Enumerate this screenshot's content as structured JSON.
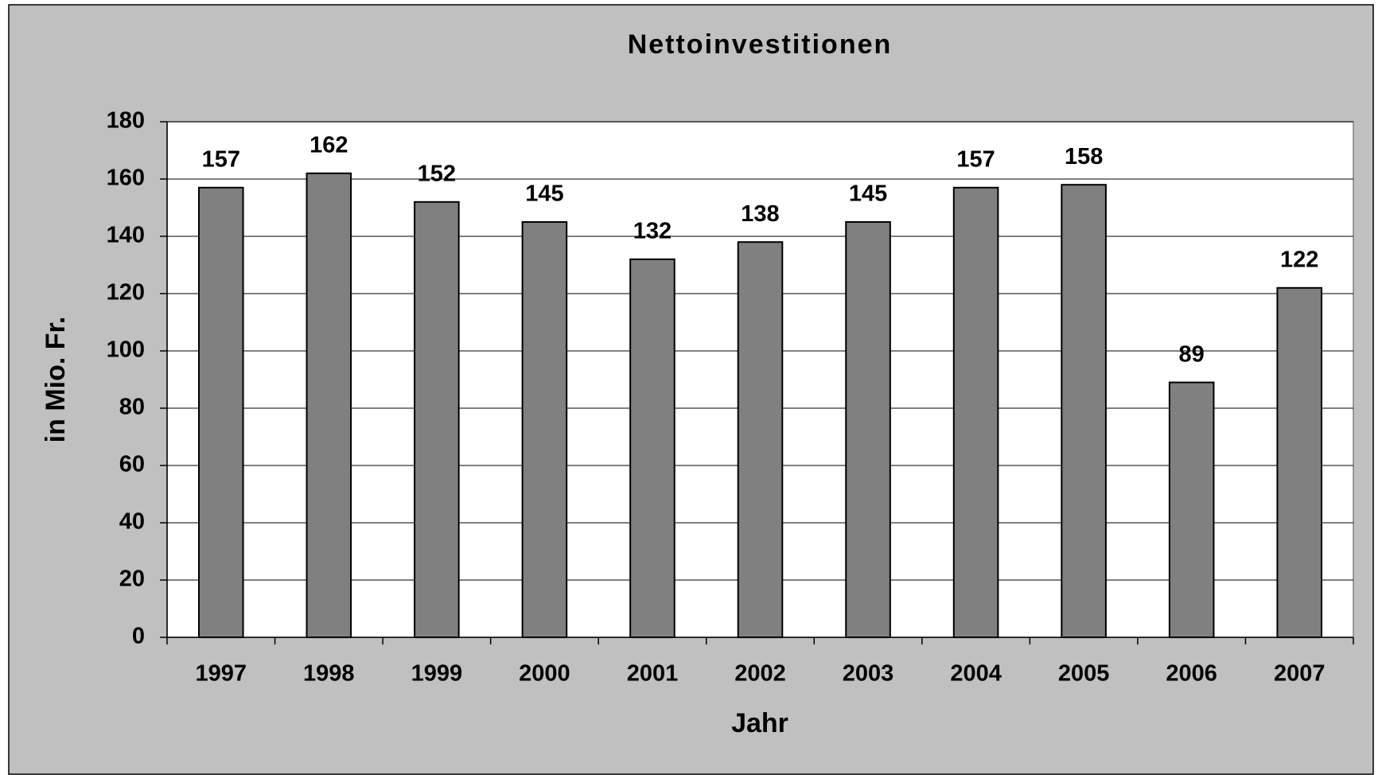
{
  "chart_data": {
    "type": "bar",
    "title": "Nettoinvestitionen",
    "x_label": "Jahr",
    "y_label": "in Mio. Fr.",
    "categories": [
      "1997",
      "1998",
      "1999",
      "2000",
      "2001",
      "2002",
      "2003",
      "2004",
      "2005",
      "2006",
      "2007"
    ],
    "values": [
      157,
      162,
      152,
      145,
      132,
      138,
      145,
      157,
      158,
      89,
      122
    ],
    "color": "#808080",
    "ylim": [
      0,
      180
    ],
    "yticks": [
      0,
      20,
      40,
      60,
      80,
      100,
      120,
      140,
      160,
      180
    ],
    "grid": true
  }
}
